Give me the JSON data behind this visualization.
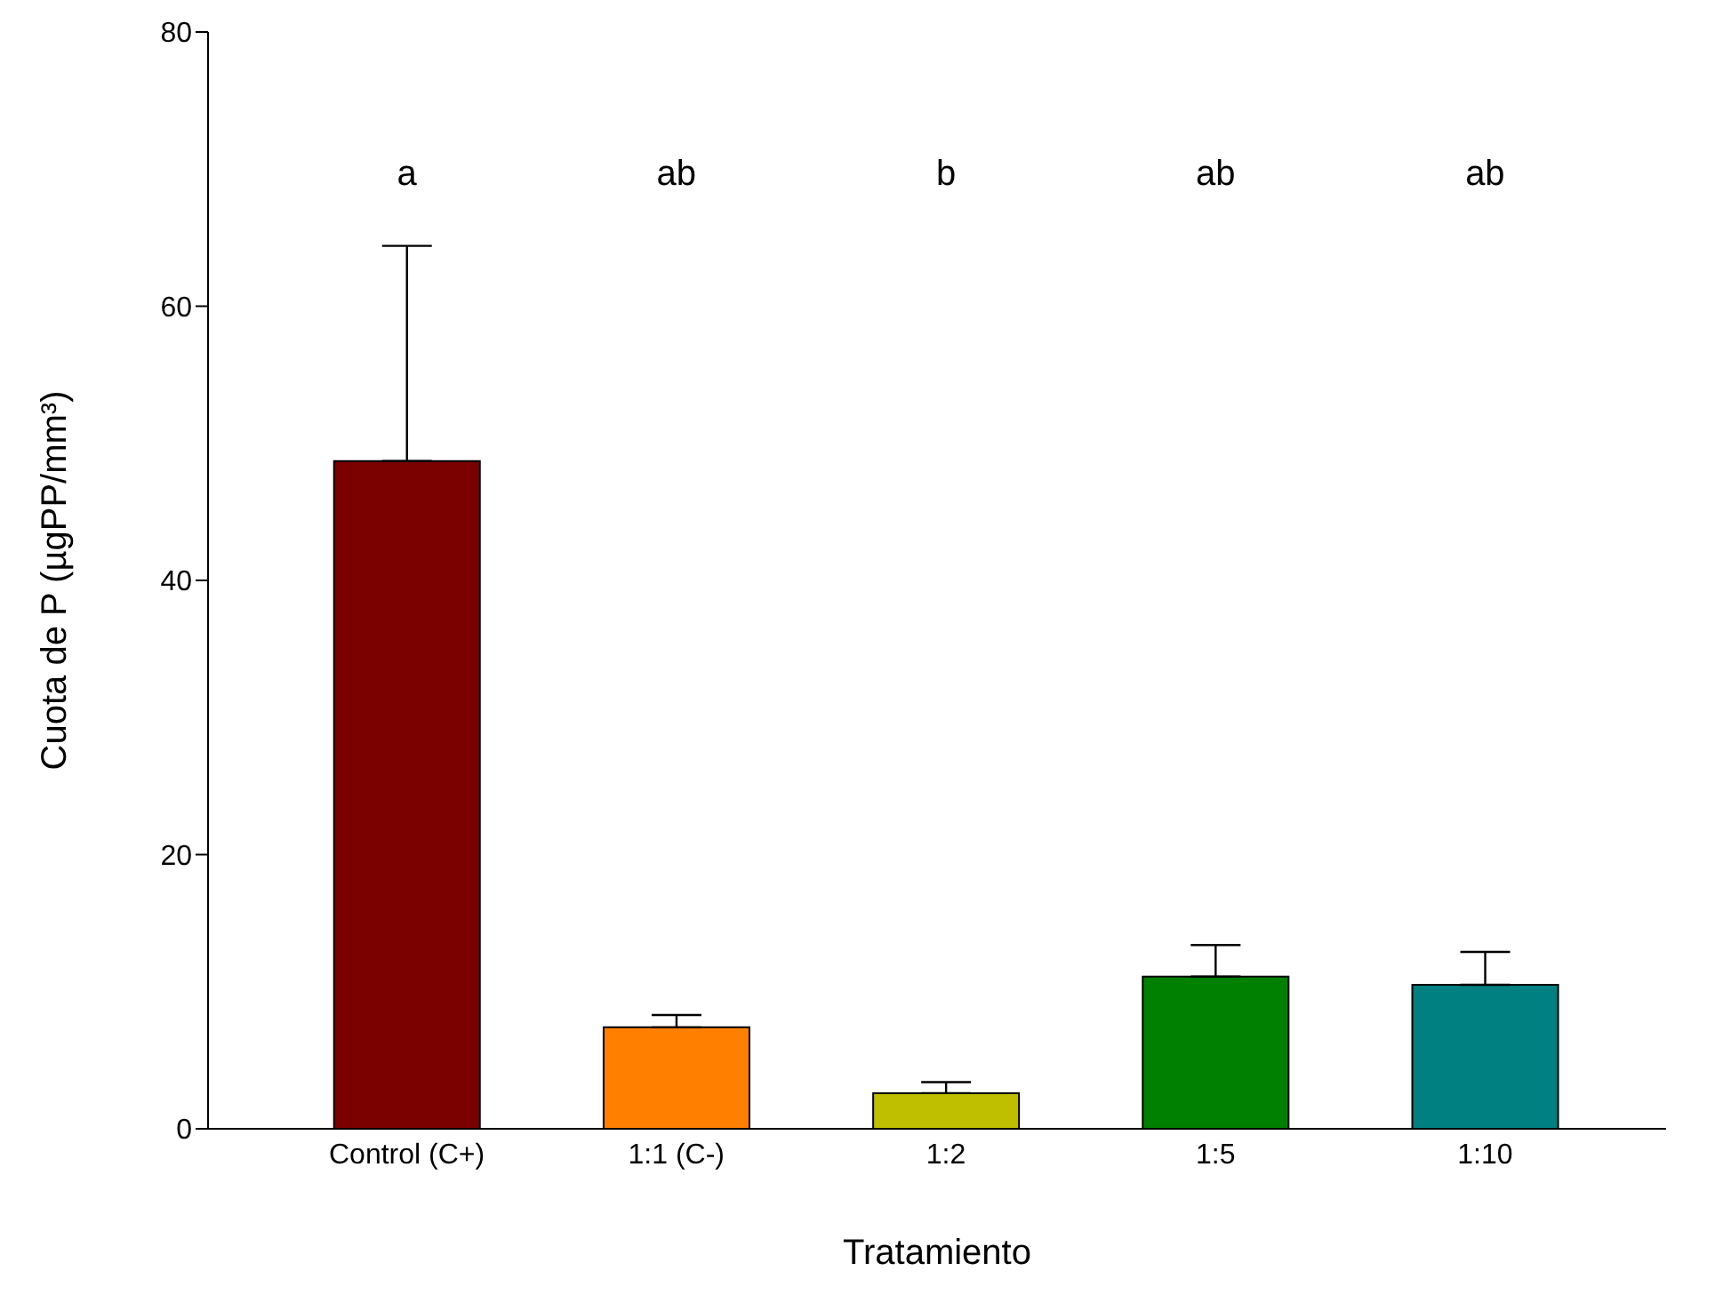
{
  "chart_data": {
    "type": "bar",
    "xlabel": "Tratamiento",
    "ylabel": "Cuota de P (µgPP/mm³)",
    "categories": [
      "Control (C+)",
      "1:1 (C-)",
      "1:2",
      "1:5",
      "1:10"
    ],
    "values": [
      48.7,
      7.4,
      2.6,
      11.1,
      10.5
    ],
    "colors": [
      "#7b0000",
      "#ff8000",
      "#bfbf00",
      "#008000",
      "#008080"
    ],
    "errors": [
      [
        48.7,
        64.4
      ],
      [
        7.4,
        8.3
      ],
      [
        2.6,
        3.4
      ],
      [
        11.1,
        13.4
      ],
      [
        10.5,
        12.9
      ]
    ],
    "ylim": [
      0,
      80
    ],
    "yticks": [
      0,
      20,
      40,
      60,
      80
    ],
    "grid": false,
    "annotations": [
      "a",
      "ab",
      "b",
      "ab",
      "ab"
    ]
  }
}
